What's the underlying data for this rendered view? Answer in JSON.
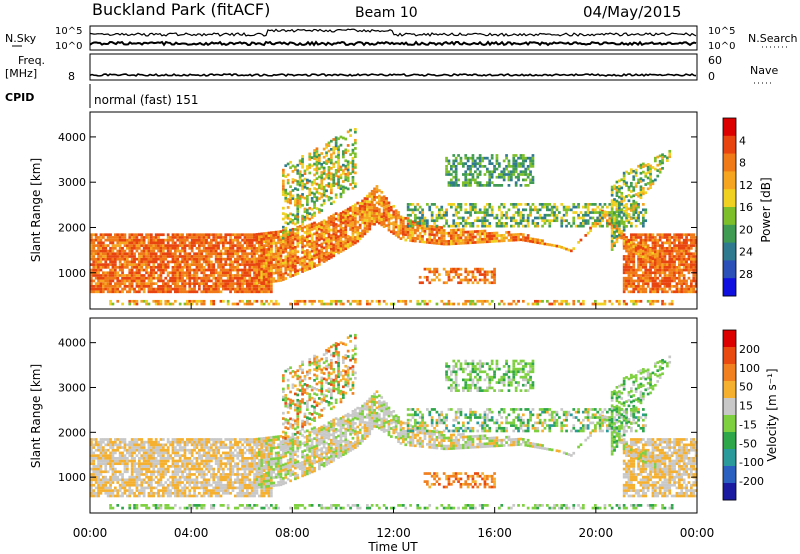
{
  "header": {
    "station": "Buckland Park (fitACF)",
    "beam": "Beam 10",
    "date": "04/May/2015"
  },
  "noise_panel": {
    "left_label": "N.Sky",
    "right_label": "N.Search",
    "left_ticks": [
      "10^5",
      "10^0"
    ],
    "right_ticks": [
      "10^5",
      "10^0"
    ]
  },
  "freq_panel": {
    "left_label_1": "Freq.",
    "left_label_2": "[MHz]",
    "right_label": "Nave",
    "left_tick": "8",
    "right_ticks": [
      "60",
      "0"
    ]
  },
  "cpid_panel": {
    "label": "CPID",
    "text": "normal (fast) 151"
  },
  "chart_data": [
    {
      "type": "heatmap",
      "name": "power",
      "ylabel": "Slant Range [km]",
      "ylim": [
        200,
        4550
      ],
      "yticks": [
        1000,
        2000,
        3000,
        4000
      ],
      "xlim_hours": [
        0,
        24
      ],
      "colorbar": {
        "label": "Power [dB]",
        "ticks": [
          "4",
          "8",
          "12",
          "16",
          "20",
          "24",
          "28"
        ],
        "colors": [
          "#1010e0",
          "#2b50b8",
          "#2f7a8e",
          "#3f9a52",
          "#7dbf2a",
          "#f0d020",
          "#f5a520",
          "#f07a18",
          "#e84410",
          "#dd0000"
        ]
      }
    },
    {
      "type": "heatmap",
      "name": "velocity",
      "ylabel": "Slant Range [km]",
      "ylim": [
        200,
        4550
      ],
      "yticks": [
        1000,
        2000,
        3000,
        4000
      ],
      "xlim_hours": [
        0,
        24
      ],
      "colorbar": {
        "label": "Velocity [m s⁻¹]",
        "ticks": [
          "200",
          "100",
          "50",
          "15",
          "-15",
          "-50",
          "-100",
          "-200"
        ],
        "colors": [
          "#1a1aa0",
          "#2a60c0",
          "#2a9a9a",
          "#2ea64a",
          "#7fd040",
          "#c8c8c8",
          "#f5b030",
          "#f08020",
          "#e84a10",
          "#dd0000"
        ]
      }
    }
  ],
  "x_axis": {
    "label": "Time UT",
    "ticks": [
      "00:00",
      "04:00",
      "08:00",
      "12:00",
      "16:00",
      "20:00",
      "00:00"
    ]
  }
}
